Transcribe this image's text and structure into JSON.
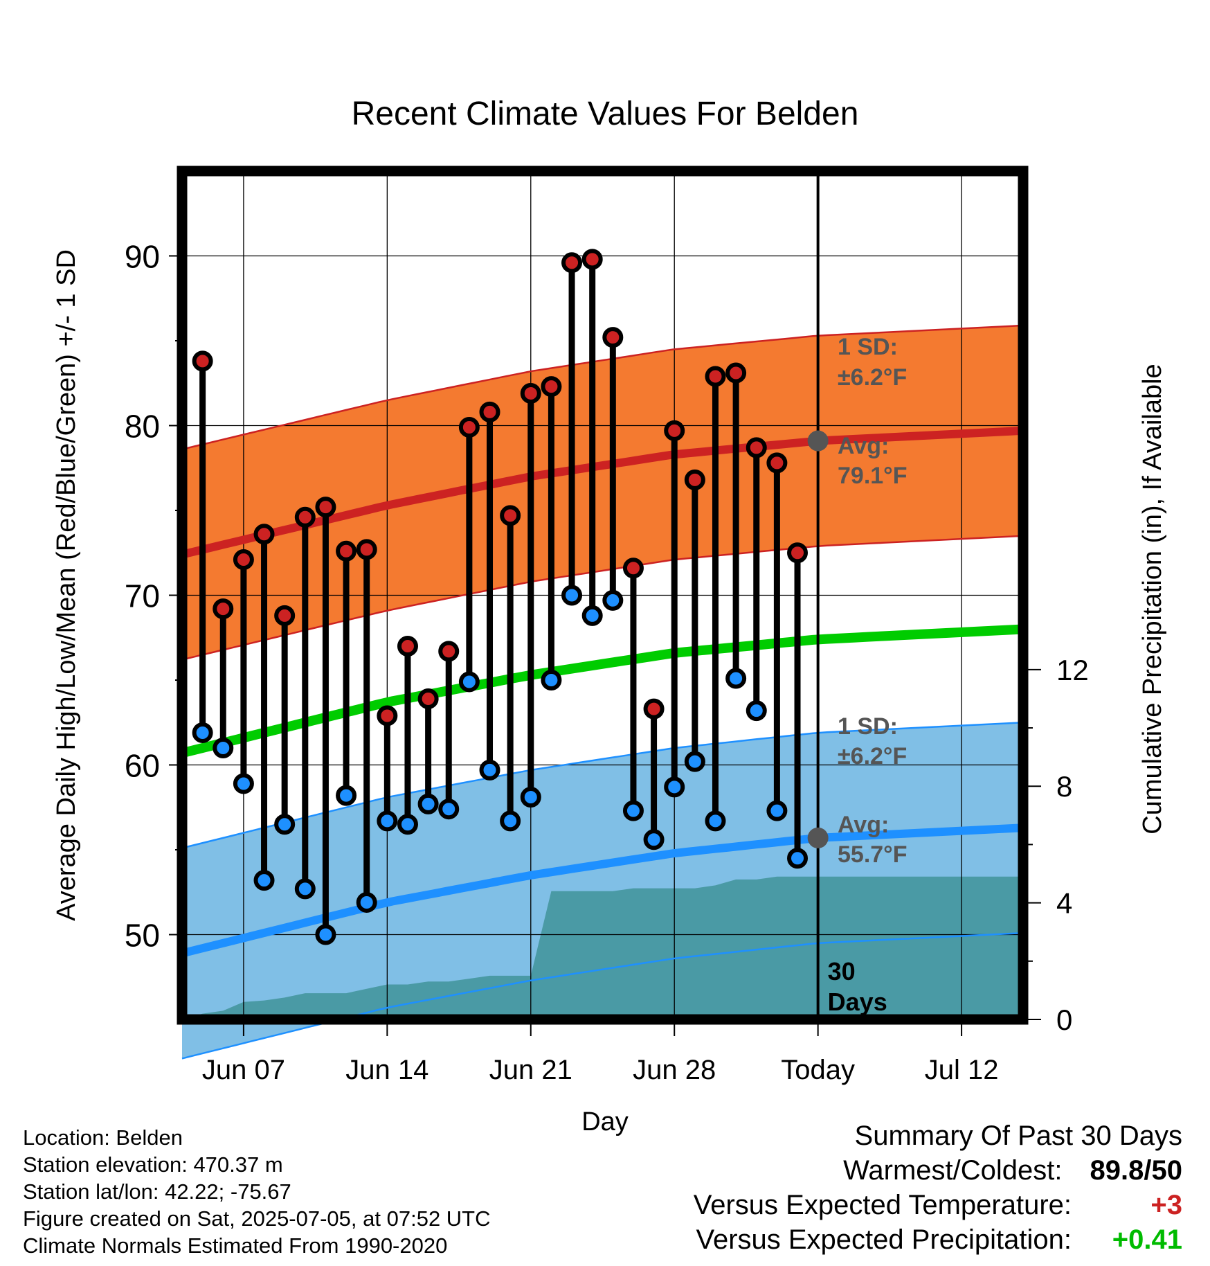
{
  "chart_data": {
    "type": "line",
    "title": "Recent Climate Values For Belden",
    "xlabel": "Day",
    "ylabel_left": "Average Daily High/Low/Mean (Red/Blue/Green) +/- 1 SD",
    "ylabel_right": "Cumulative Precipitation (in), If Available",
    "x_range_days": [
      "2025-06-04",
      "2025-07-15"
    ],
    "x_ticks": [
      {
        "date": "2025-06-07",
        "label": "Jun 07"
      },
      {
        "date": "2025-06-14",
        "label": "Jun 14"
      },
      {
        "date": "2025-06-21",
        "label": "Jun 21"
      },
      {
        "date": "2025-06-28",
        "label": "Jun 28"
      },
      {
        "date": "2025-07-05",
        "label": "Today"
      },
      {
        "date": "2025-07-12",
        "label": "Jul 12"
      }
    ],
    "y_left_range": [
      45,
      95
    ],
    "y_left_ticks": [
      50,
      60,
      70,
      80,
      90
    ],
    "y_right_range": [
      0,
      29.1
    ],
    "y_right_ticks": [
      0,
      4,
      8,
      12
    ],
    "grid": true,
    "today": "2025-07-05",
    "today_label": "30 Days",
    "normals": {
      "dates": [
        "2025-06-04",
        "2025-06-14",
        "2025-06-21",
        "2025-06-28",
        "2025-07-05",
        "2025-07-15"
      ],
      "avg_high": [
        72.4,
        75.3,
        77.0,
        78.3,
        79.1,
        79.7
      ],
      "avg_low": [
        48.9,
        51.9,
        53.5,
        54.8,
        55.7,
        56.3
      ],
      "avg_mean": [
        60.7,
        63.7,
        65.3,
        66.6,
        67.4,
        68.0
      ],
      "sd": 6.2,
      "high_color": "#cc2222",
      "high_band_color": "#f47a30",
      "low_color": "#1e90ff",
      "low_band_color": "#80bfe6",
      "mean_color": "#00cc00"
    },
    "annotations": {
      "high_sd": "1 SD:",
      "high_sd_value": "±6.2°F",
      "high_avg": "Avg:",
      "high_avg_value": "79.1°F",
      "low_sd": "1 SD:",
      "low_sd_value": "±6.2°F",
      "low_avg": "Avg:",
      "low_avg_value": "55.7°F"
    },
    "series": [
      {
        "name": "High",
        "color": "#cc2222",
        "dates": [
          "2025-06-05",
          "2025-06-06",
          "2025-06-07",
          "2025-06-08",
          "2025-06-09",
          "2025-06-10",
          "2025-06-11",
          "2025-06-12",
          "2025-06-13",
          "2025-06-14",
          "2025-06-15",
          "2025-06-16",
          "2025-06-17",
          "2025-06-18",
          "2025-06-19",
          "2025-06-20",
          "2025-06-21",
          "2025-06-22",
          "2025-06-23",
          "2025-06-24",
          "2025-06-25",
          "2025-06-26",
          "2025-06-27",
          "2025-06-28",
          "2025-06-29",
          "2025-06-30",
          "2025-07-01",
          "2025-07-02",
          "2025-07-03",
          "2025-07-04"
        ],
        "values": [
          83.8,
          69.2,
          72.1,
          73.6,
          68.8,
          74.6,
          75.2,
          72.6,
          72.7,
          62.9,
          67.0,
          63.9,
          66.7,
          79.9,
          80.8,
          74.7,
          81.9,
          82.3,
          89.6,
          89.8,
          85.2,
          71.6,
          63.3,
          79.7,
          76.8,
          82.9,
          83.1,
          78.7,
          77.8,
          72.5
        ]
      },
      {
        "name": "Low",
        "color": "#1e90ff",
        "values": [
          61.9,
          61.0,
          58.9,
          53.2,
          56.5,
          52.7,
          50.0,
          58.2,
          51.9,
          56.7,
          56.5,
          57.7,
          57.4,
          64.9,
          59.7,
          56.7,
          58.1,
          65.0,
          70.0,
          68.8,
          69.7,
          57.3,
          55.6,
          58.7,
          60.2,
          56.7,
          65.1,
          63.2,
          57.3,
          54.5
        ]
      }
    ],
    "precipitation": {
      "color": "#4a9aa5",
      "dates": [
        "2025-06-04",
        "2025-06-05",
        "2025-06-06",
        "2025-06-07",
        "2025-06-08",
        "2025-06-09",
        "2025-06-10",
        "2025-06-11",
        "2025-06-12",
        "2025-06-13",
        "2025-06-14",
        "2025-06-15",
        "2025-06-16",
        "2025-06-17",
        "2025-06-18",
        "2025-06-19",
        "2025-06-20",
        "2025-06-21",
        "2025-06-22",
        "2025-06-23",
        "2025-06-24",
        "2025-06-25",
        "2025-06-26",
        "2025-06-27",
        "2025-06-28",
        "2025-06-29",
        "2025-06-30",
        "2025-07-01",
        "2025-07-02",
        "2025-07-03",
        "2025-07-04",
        "2025-07-05",
        "2025-07-15"
      ],
      "values": [
        0,
        0.2,
        0.3,
        0.6,
        0.65,
        0.75,
        0.9,
        0.9,
        0.9,
        1.05,
        1.2,
        1.2,
        1.3,
        1.3,
        1.4,
        1.5,
        1.5,
        1.5,
        4.4,
        4.4,
        4.4,
        4.4,
        4.5,
        4.5,
        4.5,
        4.5,
        4.6,
        4.8,
        4.8,
        4.9,
        4.9,
        4.9,
        4.9
      ]
    }
  },
  "info": {
    "location": "Location: Belden",
    "elevation": "Station elevation: 470.37 m",
    "latlon": "Station lat/lon: 42.22; -75.67",
    "created": "Figure created on Sat, 2025-07-05, at 07:52 UTC",
    "normals": "Climate Normals Estimated From 1990-2020"
  },
  "summary": {
    "title": "Summary Of Past 30 Days",
    "warmest_label": "Warmest/Coldest:",
    "warmest_high": "89.8",
    "warmest_sep": "/",
    "warmest_low": "50",
    "temp_label": "Versus Expected Temperature:",
    "temp_value": "+3",
    "temp_color": "#cc2222",
    "precip_label": "Versus Expected Precipitation:",
    "precip_value": "+0.41",
    "precip_color": "#00bb00"
  }
}
